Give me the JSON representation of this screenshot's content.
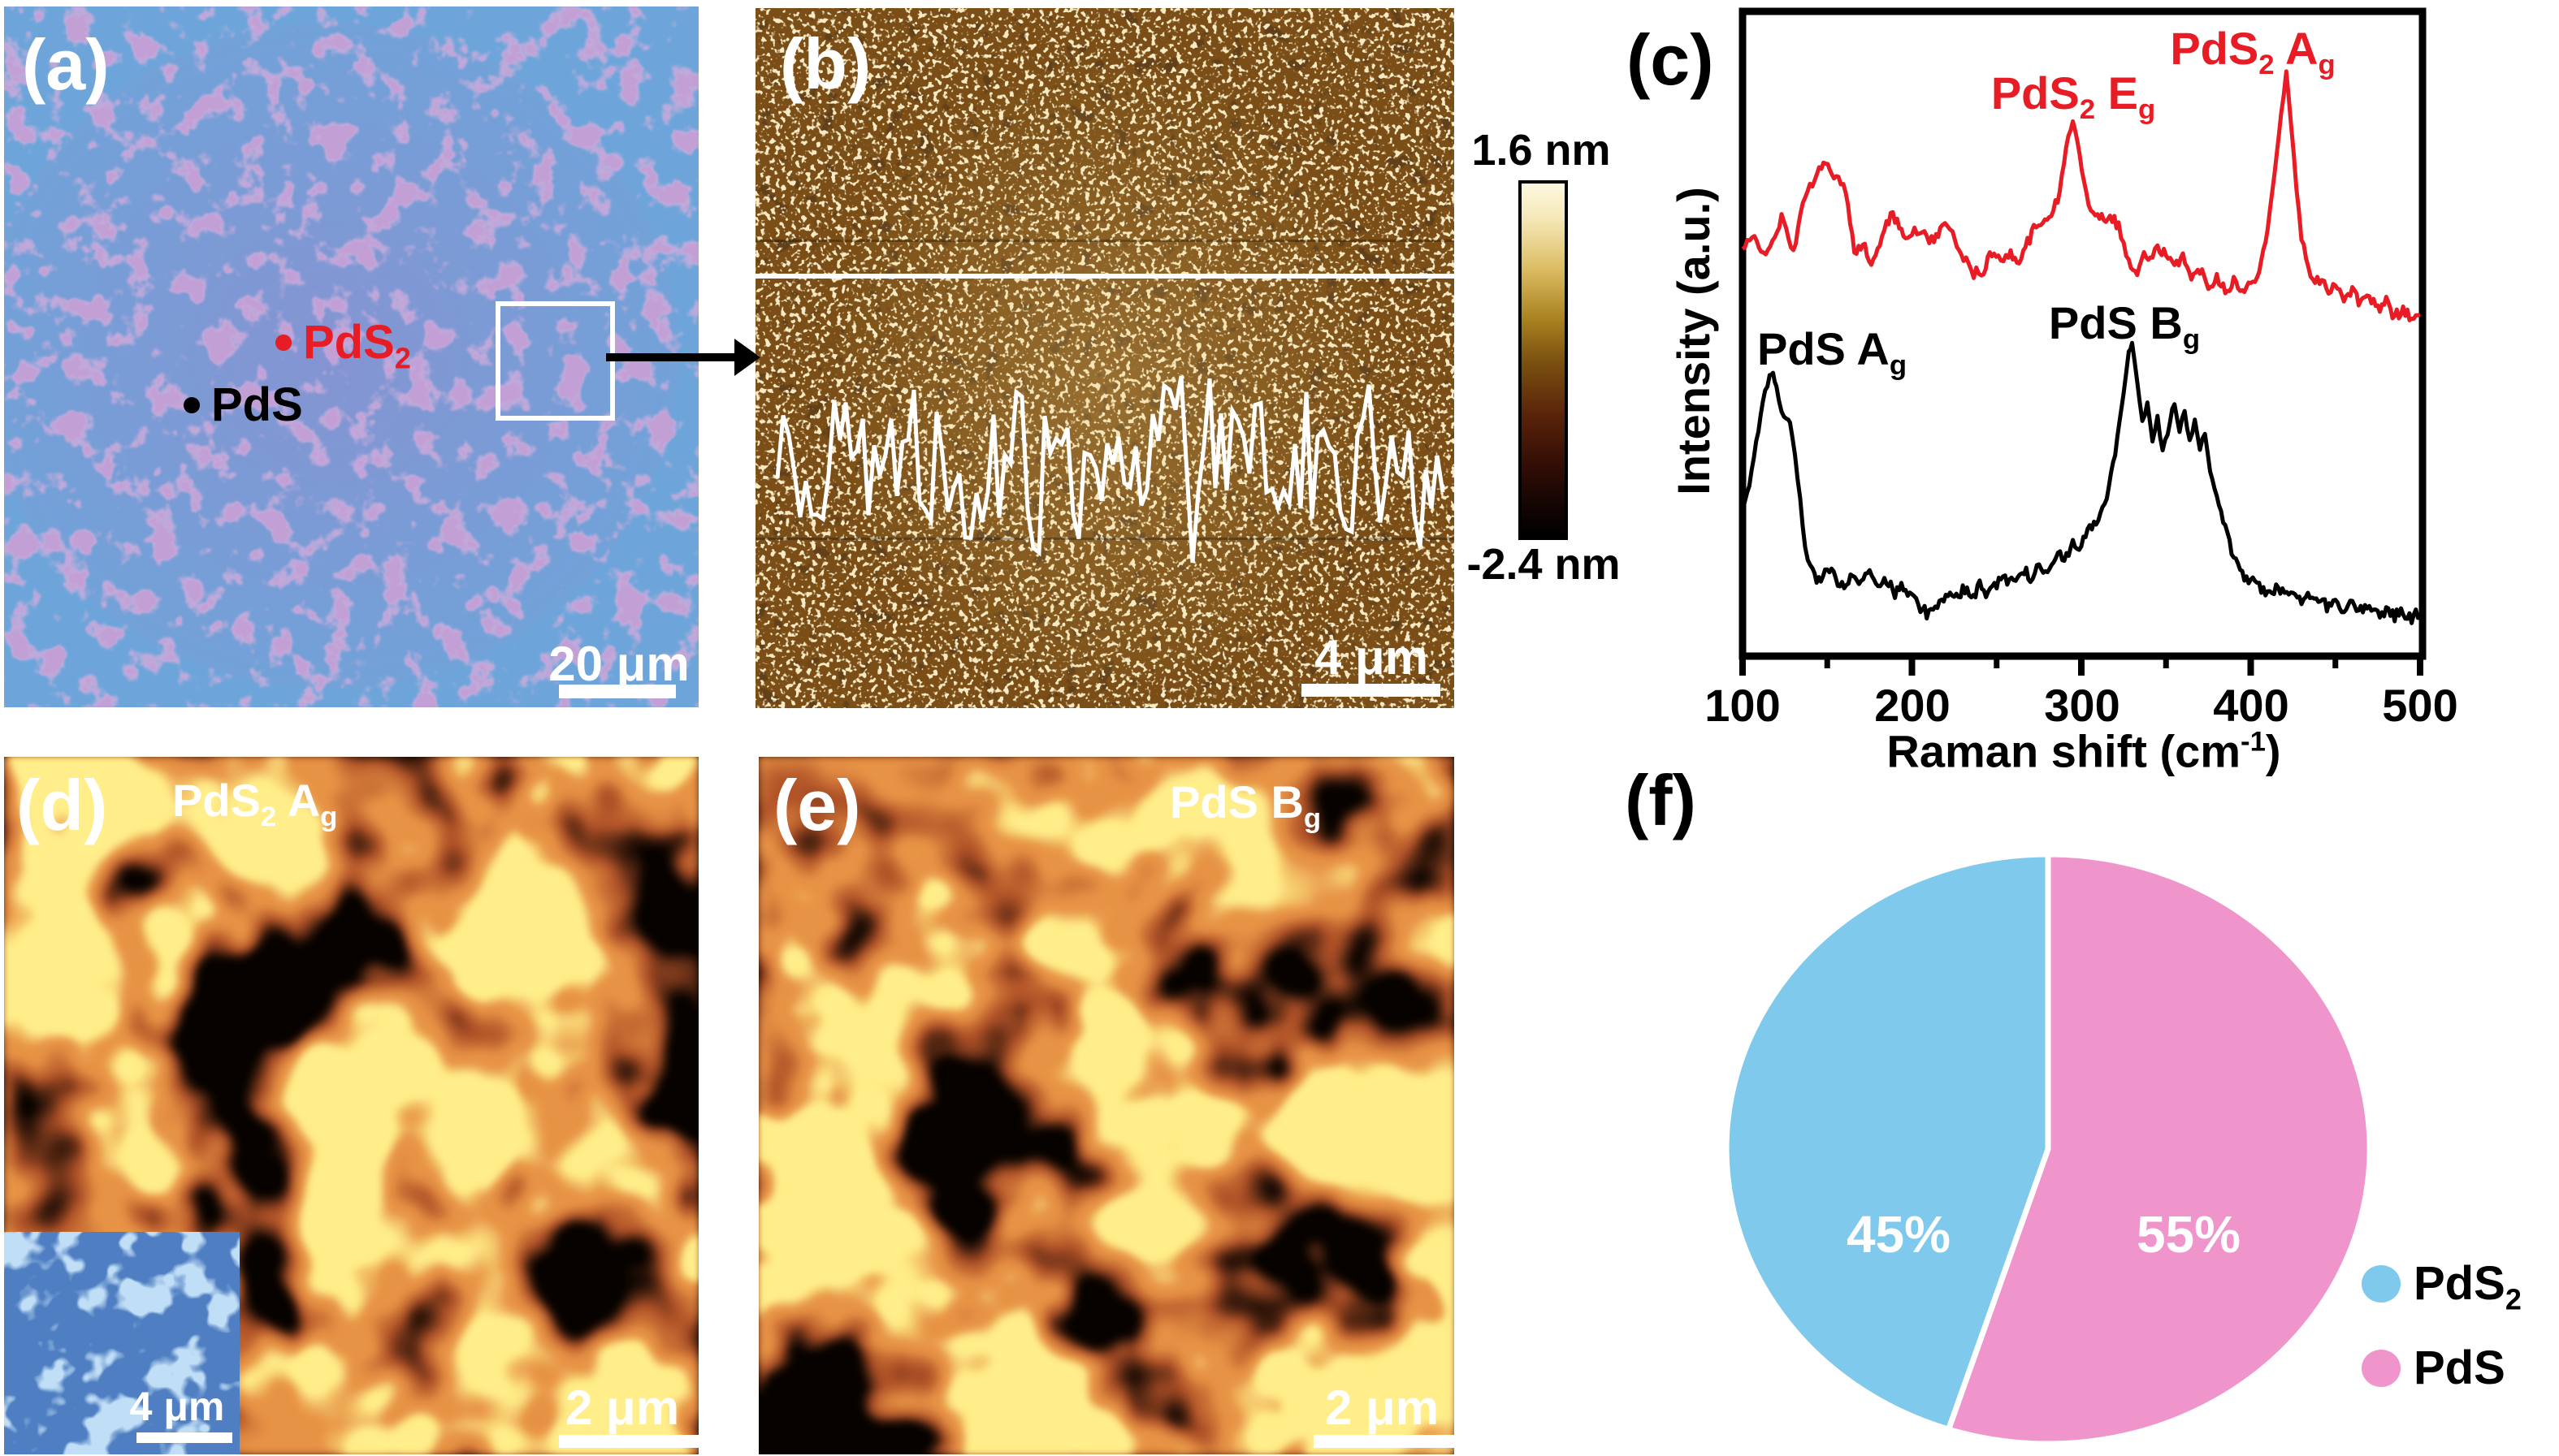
{
  "panel_a": {
    "label": "(a)",
    "pds2_base": "PdS",
    "pds2_sub": "2",
    "pds_base": "PdS",
    "scale_bar": "20 μm",
    "colors": {
      "base_blue": "#6da5da",
      "patch_purple": "#9b6cb8",
      "pds2_red": "#e81c24"
    }
  },
  "panel_b": {
    "label": "(b)",
    "scale_bar": "4 μm",
    "colorbar_max": "1.6 nm",
    "colorbar_min": "-2.4 nm"
  },
  "panel_c": {
    "label": "(c)",
    "ylabel": "Intensity (a.u.)",
    "xlabel_pre": "Raman shift (cm",
    "xlabel_sup": "-1",
    "xlabel_post": ")",
    "lab_pds2_eg": {
      "b1": "PdS",
      "s1": "2",
      "b2": " E",
      "s2": "g"
    },
    "lab_pds2_ag": {
      "b1": "PdS",
      "s1": "2",
      "b2": " A",
      "s2": "g"
    },
    "lab_pds_ag": {
      "b1": "PdS A",
      "s1": "g"
    },
    "lab_pds_bg": {
      "b1": "PdS B",
      "s1": "g"
    }
  },
  "panel_d": {
    "label": "(d)",
    "map_b1": "PdS",
    "map_s1": "2",
    "map_b2": " A",
    "map_s2": "g",
    "scale_bar": "2 μm",
    "inset_scale_bar": "4 μm"
  },
  "panel_e": {
    "label": "(e)",
    "map_b1": "PdS B",
    "map_s1": "g",
    "scale_bar": "2 μm"
  },
  "panel_f": {
    "label": "(f)",
    "slice_labels": [
      "45%",
      "55%"
    ],
    "legend": [
      {
        "b": "PdS",
        "s": "2",
        "color": "#7ec9ec"
      },
      {
        "b": "PdS",
        "s": "",
        "color": "#f095cb"
      }
    ]
  },
  "chart_data": [
    {
      "type": "line",
      "title": "Raman spectra of PdS2 (top, red) and PdS (bottom, black)",
      "xlabel": "Raman shift (cm^-1)",
      "ylabel": "Intensity (a.u.)",
      "xlim": [
        100,
        500
      ],
      "xticks": [
        "100",
        "200",
        "300",
        "400",
        "500"
      ],
      "ylim": [
        0,
        1
      ],
      "grid": false,
      "legend_position": "none",
      "annotations": [
        {
          "text": "PdS2 Eg",
          "x": 295,
          "color": "#e81c24"
        },
        {
          "text": "PdS2 Ag",
          "x": 421,
          "color": "#e81c24"
        },
        {
          "text": "PdS Ag",
          "x": 118,
          "color": "#000000"
        },
        {
          "text": "PdS Bg",
          "x": 330,
          "color": "#000000"
        }
      ],
      "series": [
        {
          "name": "PdS2",
          "color": "#e81c24",
          "x": [
            100,
            107,
            115,
            123,
            130,
            137,
            144,
            149,
            154,
            158,
            161,
            166,
            171,
            176,
            181,
            185,
            190,
            195,
            200,
            206,
            213,
            218,
            224,
            229,
            235,
            241,
            246,
            251,
            257,
            262,
            267,
            272,
            276,
            281,
            286,
            291,
            295,
            299,
            303,
            307,
            312,
            317,
            322,
            328,
            333,
            337,
            342,
            345,
            350,
            355,
            360,
            365,
            370,
            375,
            380,
            385,
            390,
            395,
            400,
            405,
            410,
            414,
            418,
            421,
            424,
            427,
            430,
            434,
            438,
            442,
            446,
            450,
            455,
            460,
            465,
            470,
            475,
            480,
            485,
            490,
            495,
            500
          ],
          "y": [
            0.63,
            0.648,
            0.623,
            0.68,
            0.626,
            0.718,
            0.748,
            0.771,
            0.736,
            0.736,
            0.718,
            0.63,
            0.643,
            0.605,
            0.635,
            0.68,
            0.677,
            0.66,
            0.652,
            0.66,
            0.643,
            0.668,
            0.66,
            0.623,
            0.597,
            0.589,
            0.623,
            0.614,
            0.626,
            0.61,
            0.635,
            0.66,
            0.668,
            0.686,
            0.702,
            0.786,
            0.834,
            0.777,
            0.711,
            0.693,
            0.68,
            0.686,
            0.668,
            0.61,
            0.592,
            0.623,
            0.614,
            0.639,
            0.62,
            0.601,
            0.626,
            0.582,
            0.601,
            0.576,
            0.589,
            0.57,
            0.582,
            0.564,
            0.576,
            0.601,
            0.66,
            0.75,
            0.84,
            0.906,
            0.82,
            0.727,
            0.65,
            0.6,
            0.575,
            0.59,
            0.565,
            0.58,
            0.555,
            0.57,
            0.545,
            0.56,
            0.535,
            0.55,
            0.525,
            0.54,
            0.52,
            0.53
          ]
        },
        {
          "name": "PdS",
          "color": "#000000",
          "x": [
            100,
            104,
            108,
            112,
            116,
            118,
            120,
            123,
            126,
            128,
            131,
            134,
            137,
            140,
            145,
            150,
            155,
            160,
            165,
            170,
            175,
            180,
            185,
            190,
            195,
            200,
            205,
            210,
            215,
            220,
            225,
            230,
            235,
            240,
            245,
            250,
            255,
            260,
            265,
            270,
            275,
            280,
            285,
            290,
            295,
            300,
            305,
            310,
            315,
            320,
            325,
            328,
            330,
            333,
            336,
            339,
            342,
            345,
            348,
            351,
            355,
            358,
            361,
            364,
            367,
            370,
            373,
            376,
            380,
            385,
            390,
            395,
            400,
            405,
            410,
            415,
            420,
            425,
            430,
            435,
            440,
            445,
            450,
            455,
            460,
            465,
            470,
            475,
            480,
            485,
            490,
            495,
            500
          ],
          "y": [
            0.224,
            0.262,
            0.331,
            0.394,
            0.431,
            0.438,
            0.419,
            0.381,
            0.369,
            0.36,
            0.312,
            0.243,
            0.167,
            0.136,
            0.117,
            0.142,
            0.121,
            0.104,
            0.133,
            0.111,
            0.13,
            0.103,
            0.118,
            0.098,
            0.108,
            0.091,
            0.073,
            0.065,
            0.084,
            0.097,
            0.084,
            0.103,
            0.091,
            0.109,
            0.097,
            0.109,
            0.122,
            0.116,
            0.135,
            0.122,
            0.141,
            0.135,
            0.16,
            0.147,
            0.179,
            0.172,
            0.197,
            0.21,
            0.248,
            0.311,
            0.411,
            0.475,
            0.488,
            0.425,
            0.362,
            0.397,
            0.337,
            0.372,
            0.314,
            0.347,
            0.394,
            0.35,
            0.381,
            0.331,
            0.362,
            0.318,
            0.343,
            0.287,
            0.249,
            0.199,
            0.151,
            0.13,
            0.117,
            0.108,
            0.098,
            0.108,
            0.103,
            0.091,
            0.084,
            0.097,
            0.091,
            0.078,
            0.084,
            0.072,
            0.084,
            0.072,
            0.078,
            0.065,
            0.072,
            0.063,
            0.069,
            0.06,
            0.067
          ]
        }
      ]
    },
    {
      "type": "pie",
      "labels": [
        "PdS2",
        "PdS"
      ],
      "values": [
        45,
        55
      ],
      "value_labels": [
        "45%",
        "55%"
      ],
      "colors": [
        "#7ec9ec",
        "#f095cb"
      ],
      "start": "top",
      "direction": "clockwise",
      "legend_position": "right"
    }
  ]
}
